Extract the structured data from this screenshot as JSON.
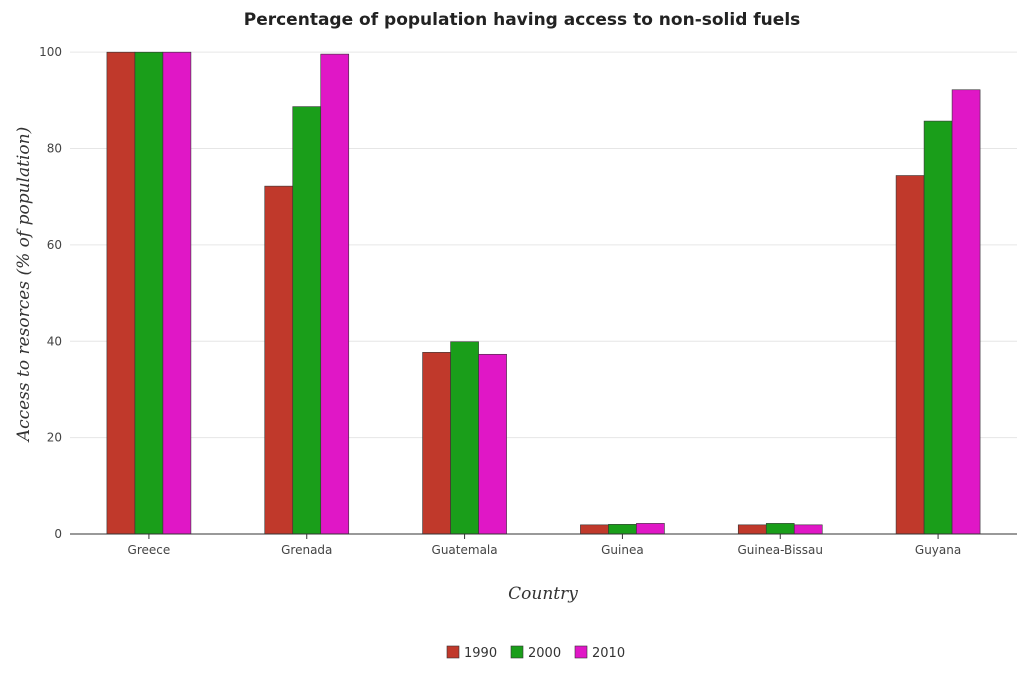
{
  "chart_data": {
    "type": "bar",
    "title": "Percentage of population having access to non-solid fuels",
    "xlabel": "Country",
    "ylabel": "Access to resorces (% of population)",
    "categories": [
      "Greece",
      "Grenada",
      "Guatemala",
      "Guinea",
      "Guinea-Bissau",
      "Guyana"
    ],
    "series": [
      {
        "name": "1990",
        "color": "#c0392b",
        "values": [
          100,
          72.2,
          37.7,
          1.9,
          1.9,
          74.4
        ]
      },
      {
        "name": "2000",
        "color": "#1a9e1a",
        "values": [
          100,
          88.7,
          39.9,
          2.0,
          2.2,
          85.7
        ]
      },
      {
        "name": "2010",
        "color": "#e017c6",
        "values": [
          100,
          99.6,
          37.3,
          2.2,
          1.9,
          92.2
        ]
      }
    ],
    "ylim": [
      0,
      110
    ],
    "yticks": [
      0,
      20,
      40,
      60,
      80,
      100
    ],
    "grid": true,
    "legend_position": "bottom-center"
  }
}
